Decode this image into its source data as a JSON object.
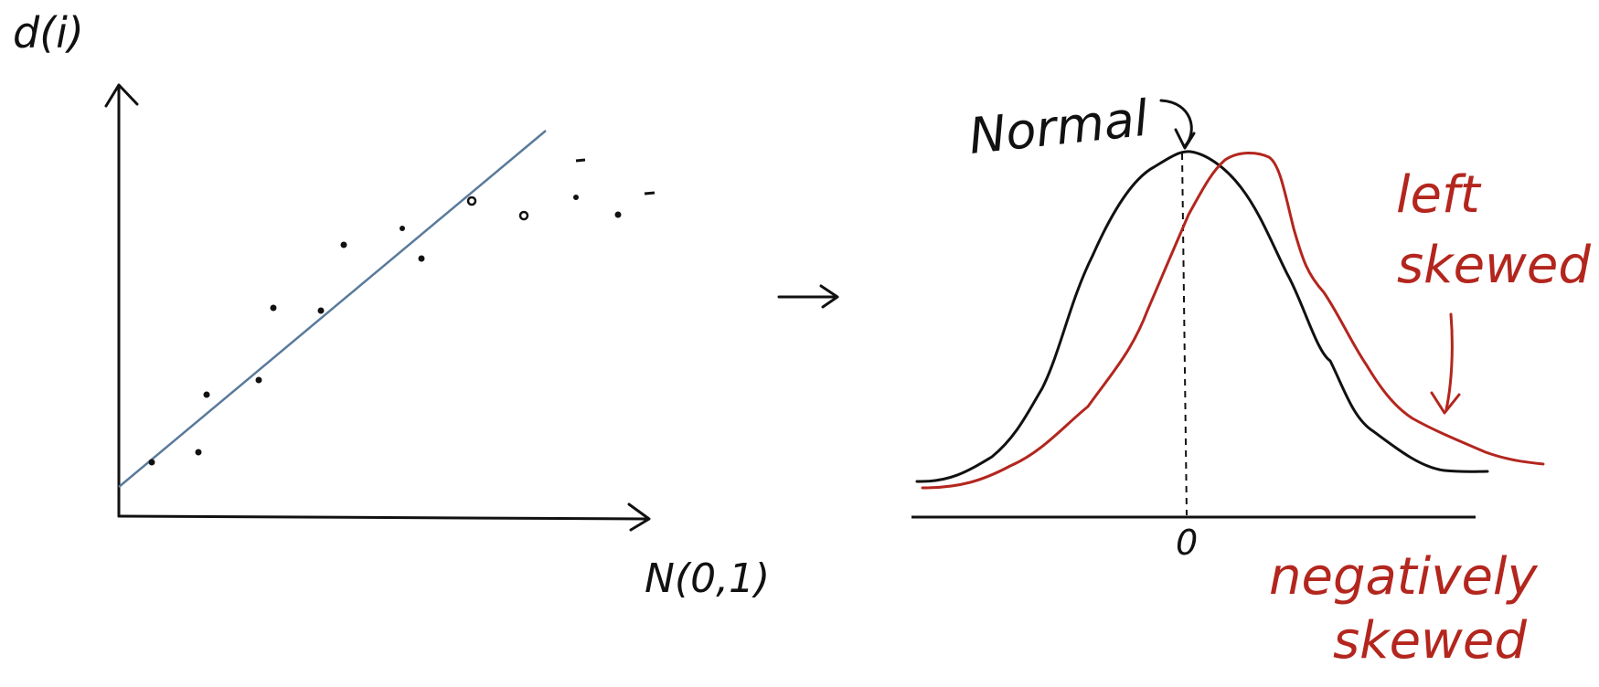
{
  "qq_plot": {
    "y_axis_label": "d(i)",
    "x_axis_label": "N(0,1)"
  },
  "arrow_symbol": "→",
  "distribution": {
    "normal_label": "Normal",
    "zero_label": "0",
    "skew_label_1": [
      "left",
      "skewed"
    ],
    "skew_label_2": [
      "negatively",
      "skewed"
    ]
  },
  "colors": {
    "ink": "#111111",
    "fit_line": "#5a7a9b",
    "skew_red": "#b3261e"
  }
}
